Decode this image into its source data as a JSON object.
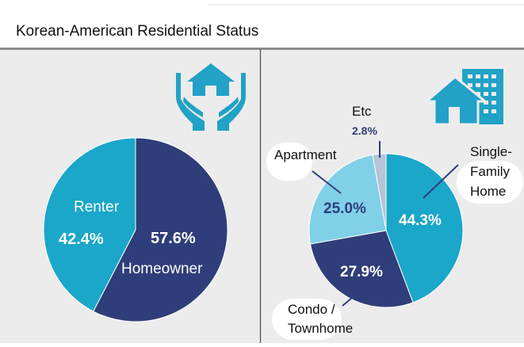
{
  "title": "Korean-American Residential Status",
  "colors": {
    "navy": "#2f3e7a",
    "teal": "#1aa7c9",
    "light_blue": "#80d0e8",
    "gray_blue": "#b5c4d6",
    "panel_bg": "#ececec",
    "icon_teal": "#21a2c6"
  },
  "icons": {
    "left": "hands-holding-house-icon",
    "right": "house-with-building-icon"
  },
  "chart_data": [
    {
      "type": "pie",
      "title": "",
      "slices": [
        {
          "label": "Homeowner",
          "value": 57.6,
          "value_label": "57.6%",
          "color": "#2f3e7a"
        },
        {
          "label": "Renter",
          "value": 42.4,
          "value_label": "42.4%",
          "color": "#1aa7c9"
        }
      ]
    },
    {
      "type": "pie",
      "title": "",
      "slices": [
        {
          "label": "Single-\nFamily\nHome",
          "value": 44.3,
          "value_label": "44.3%",
          "color": "#1aa7c9"
        },
        {
          "label": "Condo /\nTownhome",
          "value": 27.9,
          "value_label": "27.9%",
          "color": "#2f3e7a"
        },
        {
          "label": "Apartment",
          "value": 25.0,
          "value_label": "25.0%",
          "color": "#80d0e8"
        },
        {
          "label": "Etc",
          "value": 2.8,
          "value_label": "2.8%",
          "color": "#b5c4d6"
        }
      ]
    }
  ]
}
